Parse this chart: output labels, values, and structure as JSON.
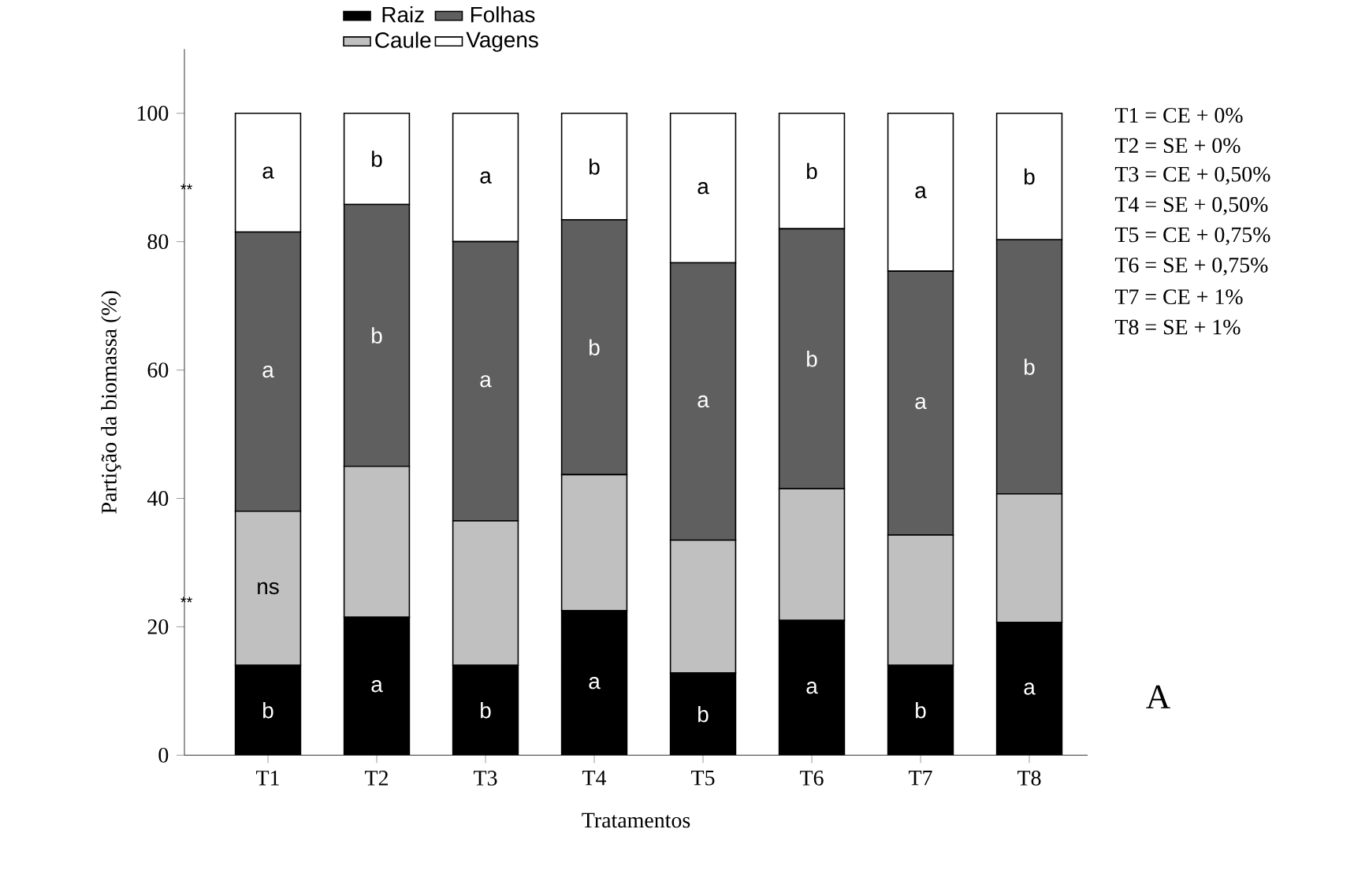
{
  "chart_data": {
    "type": "bar",
    "stacked": true,
    "xlabel": "Tratamentos",
    "ylabel": "Partição da biomassa (%)",
    "categories": [
      "T1",
      "T2",
      "T3",
      "T4",
      "T5",
      "T6",
      "T7",
      "T8"
    ],
    "series": [
      {
        "name": "Raiz",
        "color": "#000000",
        "values": [
          14,
          21.5,
          14,
          22.5,
          12.8,
          21,
          14,
          20.7
        ],
        "value_labels": [
          "b",
          "a",
          "b",
          "a",
          "b",
          "a",
          "b",
          "a"
        ]
      },
      {
        "name": "Caule",
        "color": "#c0c0c0",
        "values": [
          24,
          23.5,
          22.5,
          21.2,
          20.7,
          20.5,
          20.3,
          20
        ],
        "value_labels": [
          "ns",
          null,
          null,
          null,
          null,
          null,
          null,
          null
        ]
      },
      {
        "name": "Folhas",
        "color": "#5f5f5f",
        "values": [
          43.5,
          40.8,
          43.5,
          39.7,
          43.2,
          40.5,
          41.1,
          39.6
        ],
        "value_labels": [
          "a",
          "b",
          "a",
          "b",
          "a",
          "b",
          "a",
          "b"
        ]
      },
      {
        "name": "Vagens",
        "color": "#ffffff",
        "values": [
          18.5,
          14.2,
          20,
          16.6,
          23.3,
          18,
          24.6,
          19.7
        ],
        "value_labels": [
          "a",
          "b",
          "a",
          "b",
          "a",
          "b",
          "a",
          "b"
        ]
      }
    ],
    "ylim": [
      0,
      110
    ],
    "yticks": [
      0,
      20,
      40,
      60,
      80,
      100
    ],
    "legend": "top",
    "grid": false,
    "annotations": [
      "**",
      "**",
      "T1 = CE + 0%",
      "T2 = SE + 0%",
      "T3 = CE + 0,50%",
      "T4 = SE + 0,50%",
      "T5 = CE + 0,75%",
      "T6 = SE + 0,75%",
      "T7 = CE + 1%",
      "T8 = SE + 1%",
      "A"
    ]
  }
}
